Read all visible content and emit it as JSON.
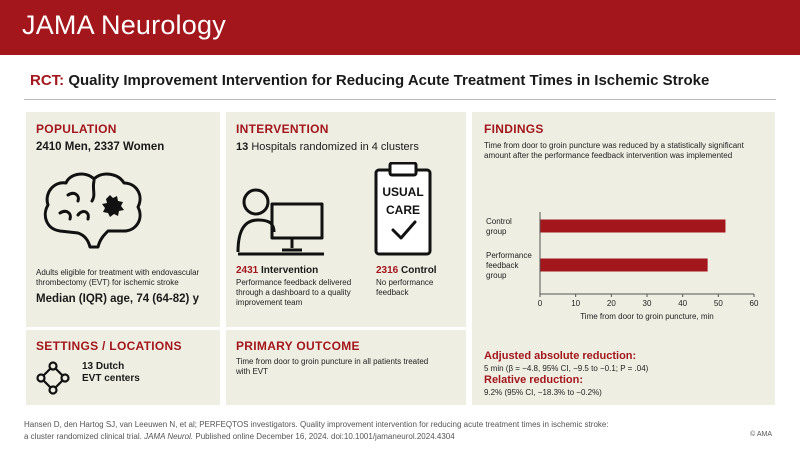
{
  "header": {
    "journal": "JAMA Neurology"
  },
  "title": {
    "prefix": "RCT:",
    "text": "Quality Improvement Intervention for Reducing Acute Treatment Times in Ischemic Stroke"
  },
  "population": {
    "heading": "POPULATION",
    "counts": "2410 Men, 2337 Women",
    "description": "Adults eligible for treatment with endovascular thrombectomy (EVT) for ischemic stroke",
    "median_age": "Median (IQR) age, 74 (64-82) y",
    "icon": "brain-icon"
  },
  "intervention": {
    "heading": "INTERVENTION",
    "hospitals_num": "13",
    "hospitals_text": "Hospitals randomized in 4 clusters",
    "arm1": {
      "num": "2431",
      "label": "Intervention",
      "desc": "Performance feedback delivered through a dashboard to a quality improvement team",
      "icon": "person-computer-icon"
    },
    "arm2": {
      "num": "2316",
      "label": "Control",
      "desc": "No performance feedback",
      "icon": "usual-care-clipboard-icon",
      "badge_line1": "USUAL",
      "badge_line2": "CARE"
    }
  },
  "settings": {
    "heading": "SETTINGS / LOCATIONS",
    "text_line1": "13 Dutch",
    "text_line2": "EVT centers",
    "icon": "network-icon"
  },
  "primary_outcome": {
    "heading": "PRIMARY OUTCOME",
    "text": "Time from door to groin puncture in all patients treated with EVT"
  },
  "findings": {
    "heading": "FINDINGS",
    "summary": "Time from door to groin puncture was reduced by a statistically significant amount after the performance feedback intervention was implemented",
    "abs_heading": "Adjusted absolute reduction:",
    "abs_text": "5 min (β = −4.8, 95% CI, −9.5 to −0.1; P = .04)",
    "rel_heading": "Relative reduction:",
    "rel_text": "9.2% (95% CI, −18.3% to −0.2%)"
  },
  "chart_data": {
    "type": "bar",
    "orientation": "horizontal",
    "categories": [
      "Control group",
      "Performance feedback group"
    ],
    "category_lines": [
      [
        "Control",
        "group"
      ],
      [
        "Performance",
        "feedback",
        "group"
      ]
    ],
    "values": [
      52,
      47
    ],
    "xlabel": "Time from door to groin puncture, min",
    "xlim": [
      0,
      60
    ],
    "xticks": [
      0,
      10,
      20,
      30,
      40,
      50,
      60
    ],
    "bar_color": "#a3161c",
    "grid": false
  },
  "footer": {
    "citation_line1": "Hansen D, den Hartog SJ, van Leeuwen N, et al; PERFEQTOS investigators. Quality improvement intervention for reducing acute treatment times in ischemic stroke:",
    "citation_line2_pre": "a cluster randomized clinical trial.",
    "citation_journal": "JAMA Neurol.",
    "citation_line2_post": "Published online December 16, 2024. doi:10.1001/jamaneurol.2024.4304",
    "copyright": "© AMA"
  },
  "colors": {
    "brand": "#a3161c",
    "panel": "#efeee3"
  }
}
